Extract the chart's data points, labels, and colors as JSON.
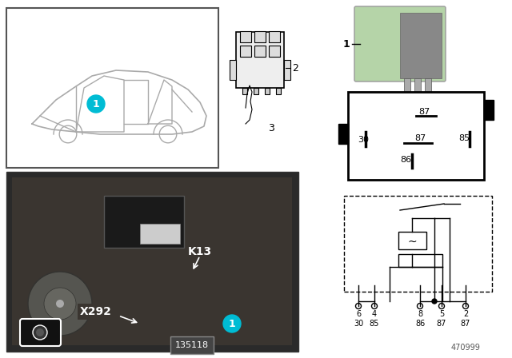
{
  "bg_color": "#ffffff",
  "relay_green_color": "#b5d4a8",
  "car_line_color": "#aaaaaa",
  "car_box_border": "#555555",
  "circuit_labels_top": [
    "6",
    "4",
    "8",
    "5",
    "2"
  ],
  "circuit_labels_bot": [
    "30",
    "85",
    "86",
    "87",
    "87"
  ],
  "photo_label": "135118",
  "photo_connector": "X292",
  "photo_relay": "K13",
  "doc_number": "470999",
  "cyan_color": "#00bcd4",
  "black": "#000000",
  "white": "#ffffff"
}
